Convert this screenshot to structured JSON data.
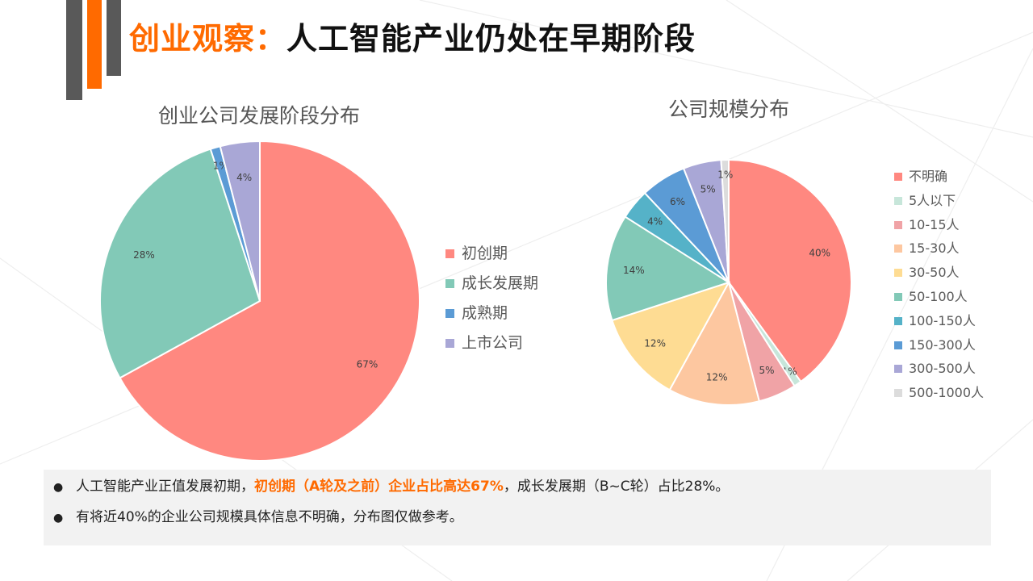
{
  "title": {
    "accent": "创业观察：",
    "main": "人工智能产业仍处在早期阶段"
  },
  "chart_data": [
    {
      "type": "pie",
      "title": "创业公司发展阶段分布",
      "categories": [
        "初创期",
        "成长发展期",
        "成熟期",
        "上市公司"
      ],
      "values": [
        67,
        28,
        1,
        4
      ],
      "labels": [
        "67%",
        "28%",
        "1%",
        "4%"
      ],
      "colors": [
        "#ff8880",
        "#82c9b7",
        "#5b9bd5",
        "#a9a7d6"
      ],
      "legend": "right"
    },
    {
      "type": "pie",
      "title": "公司规模分布",
      "categories": [
        "不明确",
        "5人以下",
        "10-15人",
        "15-30人",
        "30-50人",
        "50-100人",
        "100-150人",
        "150-300人",
        "300-500人",
        "500-1000人"
      ],
      "values": [
        40,
        1,
        5,
        12,
        12,
        14,
        4,
        6,
        5,
        1
      ],
      "labels": [
        "40%",
        "1%",
        "5%",
        "12%",
        "12%",
        "14%",
        "4%",
        "6%",
        "5%",
        "1%"
      ],
      "colors": [
        "#ff8880",
        "#c7e6da",
        "#f0a3a6",
        "#fdc7a0",
        "#fedc93",
        "#82c9b7",
        "#55b2c8",
        "#5b9bd5",
        "#a9a7d6",
        "#dcdcdc"
      ],
      "legend": "right"
    }
  ],
  "notes": [
    {
      "before": "人工智能产业正值发展初期，",
      "highlight": "初创期（A轮及之前）企业占比高达67%",
      "after": "，成长发展期（B~C轮）占比28%。"
    },
    {
      "before": "有将近40%的企业公司规模具体信息不明确，分布图仅做参考。",
      "highlight": "",
      "after": ""
    }
  ]
}
